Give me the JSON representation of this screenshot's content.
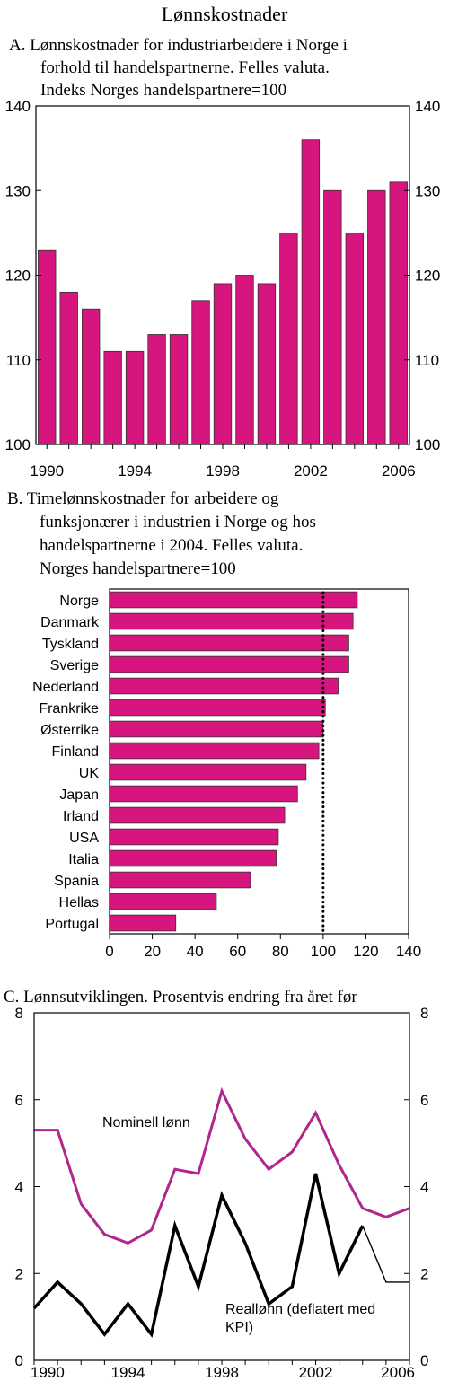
{
  "figure_title": "Lønnskostnader",
  "colors": {
    "bar": "#d6157f",
    "bar_border": "#333333",
    "nominal_line": "#b0268c",
    "real_line": "#000000"
  },
  "chart_data": [
    {
      "type": "bar",
      "title_lines": [
        "A.  Lønnskostnader for industriarbeidere i Norge i",
        "forhold til handelspartnerne. Felles valuta.",
        "Indeks Norges handelspartnere=100"
      ],
      "categories": [
        1990,
        1991,
        1992,
        1993,
        1994,
        1995,
        1996,
        1997,
        1998,
        1999,
        2000,
        2001,
        2002,
        2003,
        2004,
        2005,
        2006
      ],
      "values": [
        123,
        118,
        116,
        111,
        111,
        113,
        113,
        117,
        119,
        120,
        119,
        125,
        136,
        130,
        125,
        130,
        131
      ],
      "ylim": [
        100,
        140
      ],
      "yticks": [
        100,
        110,
        120,
        130,
        140
      ],
      "xtick_labels": [
        "1990",
        "1994",
        "1998",
        "2002",
        "2006"
      ],
      "grid": false
    },
    {
      "type": "bar",
      "orientation": "horizontal",
      "title_lines": [
        "B.  Timelønnskostnader for arbeidere og",
        "funksjonærer i industrien  i Norge og  hos",
        "handelspartnerne i 2004. Felles valuta.",
        "Norges handelspartnere=100"
      ],
      "categories": [
        "Norge",
        "Danmark",
        "Tyskland",
        "Sverige",
        "Nederland",
        "Frankrike",
        "Østerrike",
        "Finland",
        "UK",
        "Japan",
        "Irland",
        "USA",
        "Italia",
        "Spania",
        "Hellas",
        "Portugal"
      ],
      "values": [
        116,
        114,
        112,
        112,
        107,
        101,
        100,
        98,
        92,
        88,
        82,
        79,
        78,
        66,
        50,
        31
      ],
      "xlim": [
        0,
        140
      ],
      "xticks": [
        0,
        20,
        40,
        60,
        80,
        100,
        120,
        140
      ],
      "reference_line": 100,
      "grid": false
    },
    {
      "type": "line",
      "title": "C.  Lønnsutviklingen. Prosentvis endring fra året før",
      "x": [
        1990,
        1991,
        1992,
        1993,
        1994,
        1995,
        1996,
        1997,
        1998,
        1999,
        2000,
        2001,
        2002,
        2003,
        2004,
        2005,
        2006
      ],
      "series": [
        {
          "name": "Nominell lønn",
          "values": [
            5.3,
            5.3,
            3.6,
            2.9,
            2.7,
            3.0,
            4.4,
            4.3,
            6.2,
            5.1,
            4.4,
            4.8,
            5.7,
            4.5,
            3.5,
            3.3,
            3.5
          ]
        },
        {
          "name": "Reallønn (deflatert med KPI)",
          "label_lines": [
            "Reallønn (deflatert med",
            "KPI)"
          ],
          "values": [
            1.2,
            1.8,
            1.3,
            0.6,
            1.3,
            0.6,
            3.1,
            1.7,
            3.8,
            2.7,
            1.3,
            1.7,
            4.3,
            2.0,
            3.1,
            1.8,
            1.8
          ]
        }
      ],
      "ylim": [
        0,
        8
      ],
      "yticks": [
        0,
        2,
        4,
        6,
        8
      ],
      "xtick_labels": [
        "1990",
        "1994",
        "1998",
        "2002",
        "2006"
      ],
      "grid": false
    }
  ]
}
